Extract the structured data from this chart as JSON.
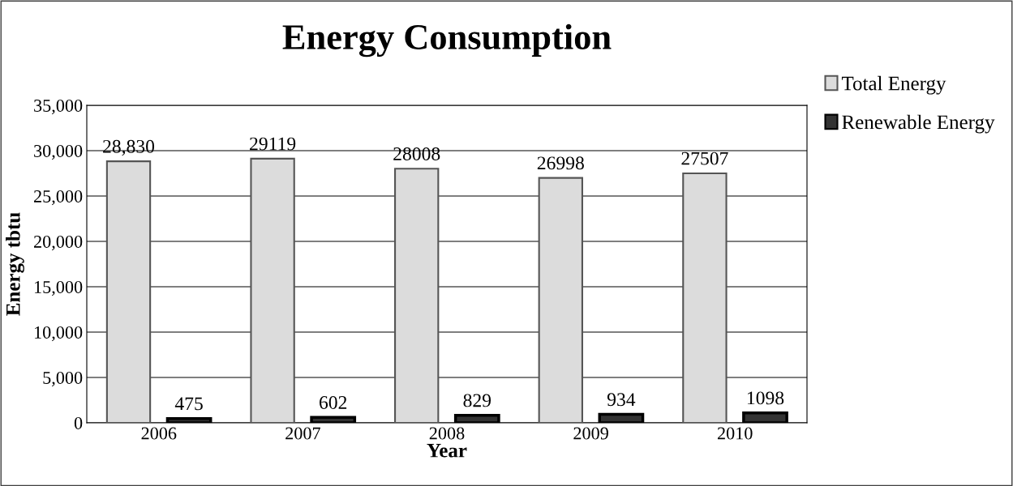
{
  "chart_data": {
    "type": "bar",
    "title": "Energy Consumption",
    "xlabel": "Year",
    "ylabel": "Energy tbtu",
    "categories": [
      "2006",
      "2007",
      "2008",
      "2009",
      "2010"
    ],
    "series": [
      {
        "name": "Total Energy",
        "color": "#dcdcdc",
        "values": [
          28830,
          29119,
          28008,
          26998,
          27507
        ],
        "value_labels": [
          "28,830",
          "29119",
          "28008",
          "26998",
          "27507"
        ]
      },
      {
        "name": "Renewable Energy",
        "color": "#333333",
        "values": [
          475,
          602,
          829,
          934,
          1098
        ],
        "value_labels": [
          "475",
          "602",
          "829",
          "934",
          "1098"
        ]
      }
    ],
    "ylim": [
      0,
      35000
    ],
    "yticks": [
      {
        "value": 0,
        "label": "0"
      },
      {
        "value": 5000,
        "label": "5,000"
      },
      {
        "value": 10000,
        "label": "10,000"
      },
      {
        "value": 15000,
        "label": "15,000"
      },
      {
        "value": 20000,
        "label": "20,000"
      },
      {
        "value": 25000,
        "label": "25,000"
      },
      {
        "value": 30000,
        "label": "30,000"
      },
      {
        "value": 35000,
        "label": "35,000"
      }
    ],
    "grid": "y",
    "legend": "top right"
  }
}
